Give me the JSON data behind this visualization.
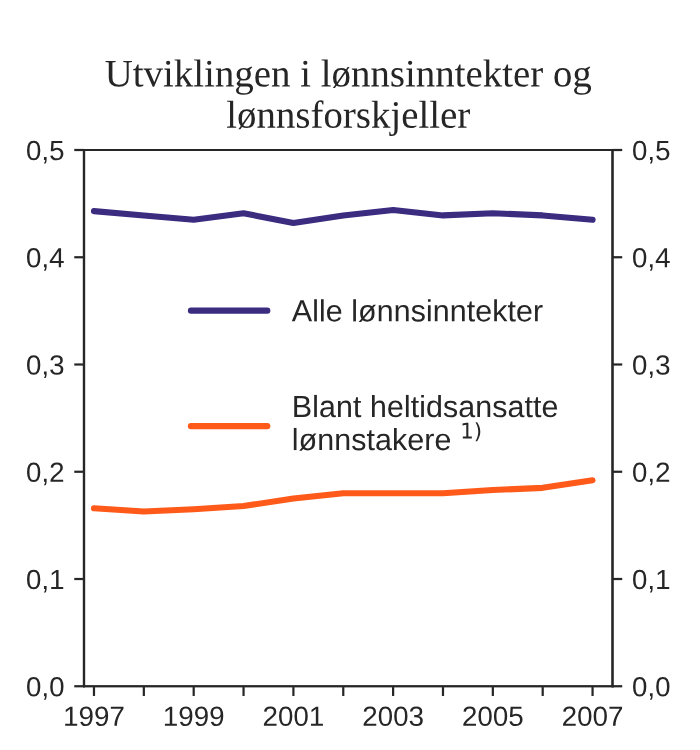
{
  "chart_data": {
    "type": "line",
    "title": "Utviklingen i lønnsinntekter og lønnsforskjeller",
    "x": [
      1997,
      1998,
      1999,
      2000,
      2001,
      2002,
      2003,
      2004,
      2005,
      2006,
      2007
    ],
    "series": [
      {
        "name": "Alle lønnsinntekter",
        "color": "#3b2c80",
        "values": [
          0.443,
          0.439,
          0.435,
          0.441,
          0.432,
          0.439,
          0.444,
          0.439,
          0.441,
          0.439,
          0.435
        ]
      },
      {
        "name": "Blant heltidsansatte lønnstakere $^{1)}$",
        "color": "#ff5a1a",
        "values": [
          0.166,
          0.163,
          0.165,
          0.168,
          0.175,
          0.18,
          0.18,
          0.18,
          0.183,
          0.185,
          0.192
        ]
      }
    ],
    "xlim": [
      1996.8,
      2007.4
    ],
    "xticks": [
      1997,
      {
        "value": 1998,
        "label": null
      },
      1999,
      {
        "value": 2000,
        "label": null
      },
      2001,
      {
        "value": 2002,
        "label": null
      },
      2003,
      {
        "value": 2004,
        "label": null
      },
      2005,
      {
        "value": 2006,
        "label": null
      },
      2007
    ],
    "ylim": [
      0,
      0.5
    ],
    "yticks": [
      {
        "value": 0,
        "label": "0,0"
      },
      {
        "value": 0.1,
        "label": "0,1"
      },
      {
        "value": 0.2,
        "label": "0,2"
      },
      {
        "value": 0.3,
        "label": "0,3"
      },
      {
        "value": 0.4,
        "label": "0,4"
      },
      {
        "value": 0.5,
        "label": "0,5"
      }
    ],
    "y2lim": [
      0,
      0.5
    ],
    "y2ticks": [
      {
        "value": 0,
        "label": "0,0"
      },
      {
        "value": 0.1,
        "label": "0,1"
      },
      {
        "value": 0.2,
        "label": "0,2"
      },
      {
        "value": 0.3,
        "label": "0,3"
      },
      {
        "value": 0.4,
        "label": "0,4"
      },
      {
        "value": 0.5,
        "label": "0,5"
      }
    ],
    "legend": "center",
    "grid": false,
    "marker": "none",
    "line_style": "solid"
  }
}
